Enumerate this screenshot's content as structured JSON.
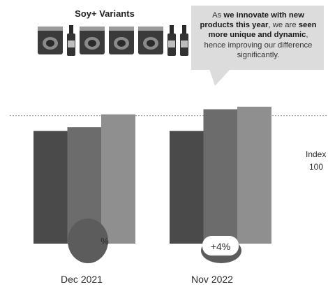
{
  "header": {
    "title": "Soy+ Variants"
  },
  "callout": {
    "parts": [
      {
        "t": "As ",
        "b": false
      },
      {
        "t": "we innovate with new products this year",
        "b": true
      },
      {
        "t": ", we are ",
        "b": false
      },
      {
        "t": "seen more unique and dynamic",
        "b": true
      },
      {
        "t": ", hence improving our difference significantly.",
        "b": false
      }
    ]
  },
  "product_images": {
    "items": [
      "pouch",
      "bottle",
      "pouch",
      "pouch",
      "pouch",
      "bottle",
      "bottle"
    ]
  },
  "chart_data": {
    "type": "bar",
    "categories": [
      "Dec 2021",
      "Nov 2022"
    ],
    "series": [
      {
        "values": [
          88,
          88
        ]
      },
      {
        "values": [
          91,
          105
        ]
      },
      {
        "values": [
          101,
          107
        ]
      }
    ],
    "reference_line": {
      "value": 100,
      "label_line1": "Index",
      "label_line2": "100"
    },
    "badges": [
      {
        "category": "Dec 2021",
        "text": "%"
      },
      {
        "category": "Nov 2022",
        "text": "+4%"
      }
    ],
    "ylim": [
      0,
      120
    ],
    "grid": false,
    "colors": {
      "series": [
        "#4a4a4a",
        "#6c6c6c",
        "#8f8f8f"
      ],
      "reference_line": "#9a9a9a",
      "badge_circle": "#5c5c5c",
      "badge_label_bg": "#ffffff",
      "text": "#2b2b2b"
    }
  }
}
